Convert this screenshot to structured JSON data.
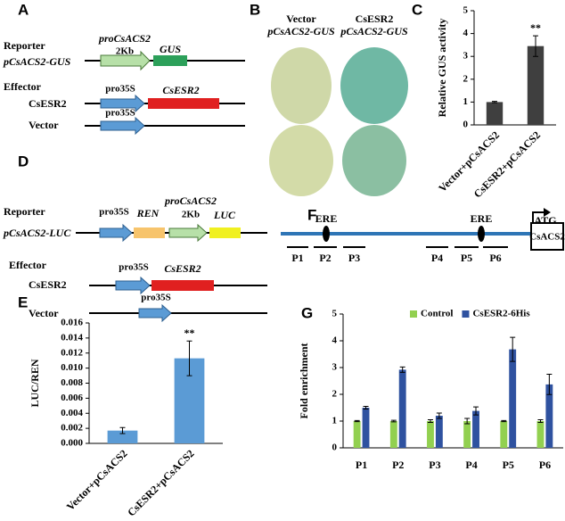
{
  "panels": {
    "A": {
      "label": "A",
      "reporter": "Reporter",
      "reporter_construct": "pCsACS2-GUS",
      "promoter": "proCsACS2",
      "promoter_size": "2Kb",
      "gene": "GUS",
      "effector": "Effector",
      "effector_construct": "CsESR2",
      "effector_promoter": "pro35S",
      "effector_gene": "CsESR2",
      "vector": "Vector",
      "vector_promoter": "pro35S"
    },
    "B": {
      "label": "B",
      "left_title": "Vector",
      "left_construct": "pCsACS2-GUS",
      "right_title": "CsESR2",
      "right_construct": "pCsACS2-GUS"
    },
    "D": {
      "label": "D",
      "reporter": "Reporter",
      "reporter_construct": "pCsACS2-LUC",
      "ref_promoter": "pro35S",
      "ref_gene": "REN",
      "promoter": "proCsACS2",
      "promoter_size": "2Kb",
      "gene": "LUC",
      "effector": "Effector",
      "effector_construct": "CsESR2",
      "effector_promoter": "pro35S",
      "effector_gene": "CsESR2",
      "vector": "Vector",
      "vector_promoter": "pro35S"
    },
    "F": {
      "label": "F",
      "element_1": "ERE",
      "element_2": "ERE",
      "start": "ATG",
      "gene": "CsACS2",
      "regions": [
        "P1",
        "P2",
        "P3",
        "P4",
        "P5",
        "P6"
      ]
    }
  },
  "chart_data": [
    {
      "type": "bar",
      "panel": "C",
      "y_label": "Relative GUS activity",
      "categories": [
        "Vector+pCsACS2",
        "CsESR2+pCsACS2"
      ],
      "values": [
        1,
        3.45
      ],
      "errors": [
        0.03,
        0.45
      ],
      "significance": [
        null,
        "**"
      ],
      "color": "#3f3f3f",
      "ylim": [
        0,
        5
      ],
      "yticks": [
        0,
        1,
        2,
        3,
        4,
        5
      ]
    },
    {
      "type": "bar",
      "panel": "E",
      "y_label": "LUC/REN",
      "categories": [
        "Vector+pCsACS2",
        "CsESR2+pCsACS2"
      ],
      "values": [
        0.0017,
        0.0113
      ],
      "errors": [
        0.0004,
        0.0023
      ],
      "significance": [
        null,
        "**"
      ],
      "color": "#5b9bd5",
      "ylim": [
        0,
        0.016
      ],
      "yticks": [
        {
          "value": 0,
          "label": "0.000"
        },
        {
          "value": 0.002,
          "label": "0.002"
        },
        {
          "value": 0.004,
          "label": "0.004"
        },
        {
          "value": 0.006,
          "label": "0.006"
        },
        {
          "value": 0.008,
          "label": "0.008"
        },
        {
          "value": 0.01,
          "label": "0.010"
        },
        {
          "value": 0.012,
          "label": "0.012"
        },
        {
          "value": 0.014,
          "label": "0.014"
        },
        {
          "value": 0.016,
          "label": "0.016"
        }
      ]
    },
    {
      "type": "bar",
      "panel": "G",
      "y_label": "Fold enrichment",
      "categories": [
        "P1",
        "P2",
        "P3",
        "P4",
        "P5",
        "P6"
      ],
      "series": [
        {
          "name": "Control",
          "color": "#92d050",
          "values": [
            1,
            1,
            1,
            1,
            1,
            1
          ],
          "errors": [
            0.02,
            0.03,
            0.05,
            0.1,
            0.02,
            0.05
          ]
        },
        {
          "name": "CsESR2-6His",
          "color": "#2f52a0",
          "values": [
            1.5,
            2.92,
            1.2,
            1.38,
            3.68,
            2.37
          ],
          "errors": [
            0.05,
            0.1,
            0.1,
            0.15,
            0.45,
            0.38
          ]
        }
      ],
      "ylim": [
        0,
        5
      ],
      "yticks": [
        0,
        1,
        2,
        3,
        4,
        5
      ],
      "legend": "top"
    }
  ]
}
